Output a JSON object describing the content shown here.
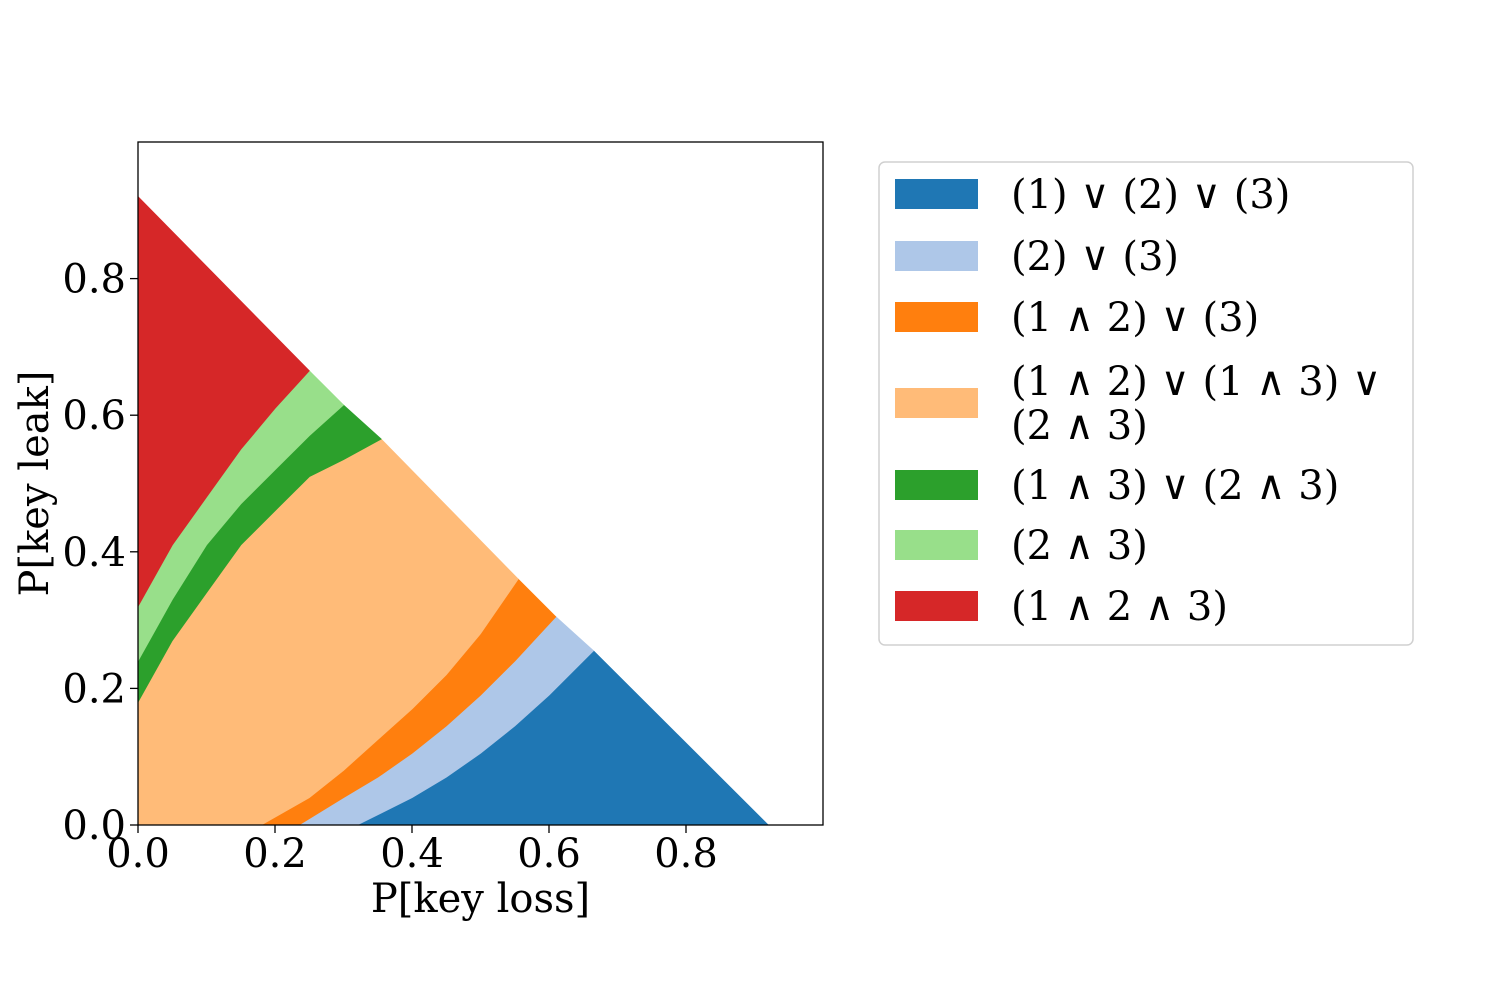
{
  "chart_data": {
    "type": "area",
    "title": "",
    "xlabel": "P[key loss]",
    "ylabel": "P[key leak]",
    "xlim": [
      0,
      1
    ],
    "ylim": [
      0,
      1
    ],
    "xticks": [
      "0.0",
      "0.2",
      "0.4",
      "0.6",
      "0.8"
    ],
    "yticks": [
      "0.0",
      "0.2",
      "0.4",
      "0.6",
      "0.8"
    ],
    "grid": false,
    "legend_position": "outside-right",
    "feasible_boundary": {
      "x_intercept": 0.92,
      "y_intercept": 0.92
    },
    "region_boundaries": [
      {
        "between": [
          "(1 ∧ 2 ∧ 3)",
          "(2 ∧ 3)"
        ],
        "points": [
          [
            0.0,
            0.32
          ],
          [
            0.05,
            0.41
          ],
          [
            0.1,
            0.48
          ],
          [
            0.15,
            0.55
          ],
          [
            0.2,
            0.61
          ],
          [
            0.25,
            0.665
          ]
        ]
      },
      {
        "between": [
          "(2 ∧ 3)",
          "(1 ∧ 3) ∨ (2 ∧ 3)"
        ],
        "points": [
          [
            0.0,
            0.24
          ],
          [
            0.05,
            0.33
          ],
          [
            0.1,
            0.41
          ],
          [
            0.15,
            0.47
          ],
          [
            0.2,
            0.52
          ],
          [
            0.25,
            0.57
          ],
          [
            0.3,
            0.615
          ]
        ]
      },
      {
        "between": [
          "(1 ∧ 3) ∨ (2 ∧ 3)",
          "(1 ∧ 2) ∨ (1 ∧ 3) ∨ (2 ∧ 3)"
        ],
        "points": [
          [
            0.0,
            0.18
          ],
          [
            0.05,
            0.27
          ],
          [
            0.1,
            0.34
          ],
          [
            0.15,
            0.41
          ],
          [
            0.2,
            0.46
          ],
          [
            0.25,
            0.51
          ],
          [
            0.3,
            0.535
          ],
          [
            0.355,
            0.565
          ]
        ]
      },
      {
        "between": [
          "(1 ∧ 2) ∨ (1 ∧ 3) ∨ (2 ∧ 3)",
          "(1 ∧ 2) ∨ (3)"
        ],
        "points": [
          [
            0.18,
            0.0
          ],
          [
            0.25,
            0.04
          ],
          [
            0.3,
            0.08
          ],
          [
            0.35,
            0.125
          ],
          [
            0.4,
            0.17
          ],
          [
            0.45,
            0.22
          ],
          [
            0.5,
            0.28
          ],
          [
            0.555,
            0.36
          ]
        ]
      },
      {
        "between": [
          "(1 ∧ 2) ∨ (3)",
          "(2) ∨ (3)"
        ],
        "points": [
          [
            0.235,
            0.0
          ],
          [
            0.3,
            0.04
          ],
          [
            0.35,
            0.07
          ],
          [
            0.4,
            0.105
          ],
          [
            0.45,
            0.145
          ],
          [
            0.5,
            0.19
          ],
          [
            0.55,
            0.24
          ],
          [
            0.61,
            0.305
          ]
        ]
      },
      {
        "between": [
          "(2) ∨ (3)",
          "(1) ∨ (2) ∨ (3)"
        ],
        "points": [
          [
            0.32,
            0.0
          ],
          [
            0.4,
            0.04
          ],
          [
            0.45,
            0.07
          ],
          [
            0.5,
            0.105
          ],
          [
            0.55,
            0.145
          ],
          [
            0.6,
            0.19
          ],
          [
            0.665,
            0.255
          ]
        ]
      }
    ],
    "series": [
      {
        "name": "(1) ∨ (2) ∨ (3)",
        "color": "#1f77b4"
      },
      {
        "name": "(2) ∨ (3)",
        "color": "#aec7e8"
      },
      {
        "name": "(1 ∧ 2) ∨ (3)",
        "color": "#ff7f0e"
      },
      {
        "name": "(1 ∧ 2) ∨ (1 ∧ 3) ∨ (2 ∧ 3)",
        "color": "#ffbb78"
      },
      {
        "name": "(1 ∧ 3) ∨ (2 ∧ 3)",
        "color": "#2ca02c"
      },
      {
        "name": "(2 ∧ 3)",
        "color": "#98df8a"
      },
      {
        "name": "(1 ∧ 2 ∧ 3)",
        "color": "#d62728"
      }
    ]
  }
}
